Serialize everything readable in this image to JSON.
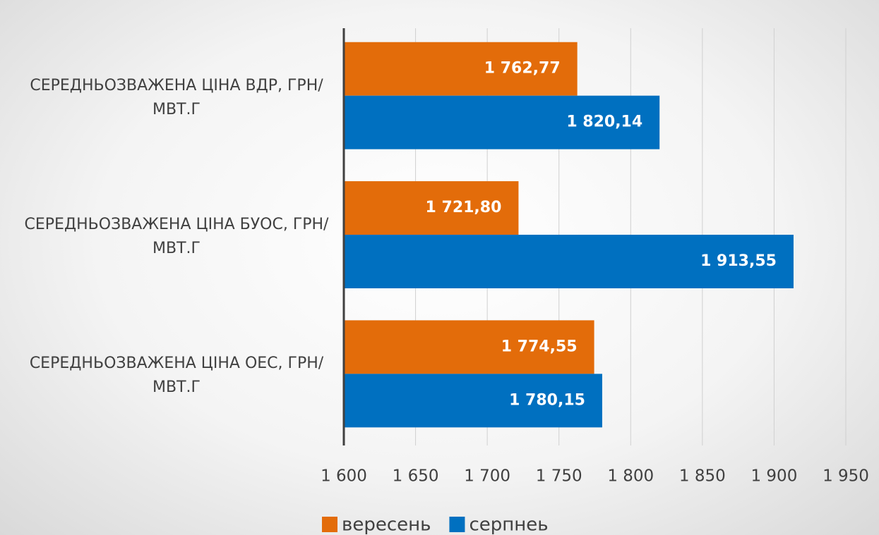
{
  "chart_data": {
    "type": "hbar",
    "categories": [
      "СЕРЕДНЬОЗВАЖЕНА ЦІНА ВДР, ГРН/МВТ.Г",
      "СЕРЕДНЬОЗВАЖЕНА ЦІНА БУОС, ГРН/МВТ.Г",
      "СЕРЕДНЬОЗВАЖЕНА ЦІНА ОЕС, ГРН/МВТ.Г"
    ],
    "series": [
      {
        "name": "вересень",
        "color": "#e36c0a",
        "values": [
          1762.77,
          1721.8,
          1774.55
        ],
        "value_labels": [
          "1 762,77",
          "1 721,80",
          "1 774,55"
        ]
      },
      {
        "name": "серпнеь",
        "color": "#0070c0",
        "values": [
          1820.14,
          1913.55,
          1780.15
        ],
        "value_labels": [
          "1 820,14",
          "1 913,55",
          "1 780,15"
        ]
      }
    ],
    "xlim": [
      1600,
      1950
    ],
    "xticks": [
      {
        "value": 1600,
        "label": "1 600"
      },
      {
        "value": 1650,
        "label": "1 650"
      },
      {
        "value": 1700,
        "label": "1 700"
      },
      {
        "value": 1750,
        "label": "1 750"
      },
      {
        "value": 1800,
        "label": "1 800"
      },
      {
        "value": 1850,
        "label": "1 850"
      },
      {
        "value": 1900,
        "label": "1 900"
      },
      {
        "value": 1950,
        "label": "1 950"
      }
    ],
    "grid": true,
    "legend": "bottom"
  }
}
